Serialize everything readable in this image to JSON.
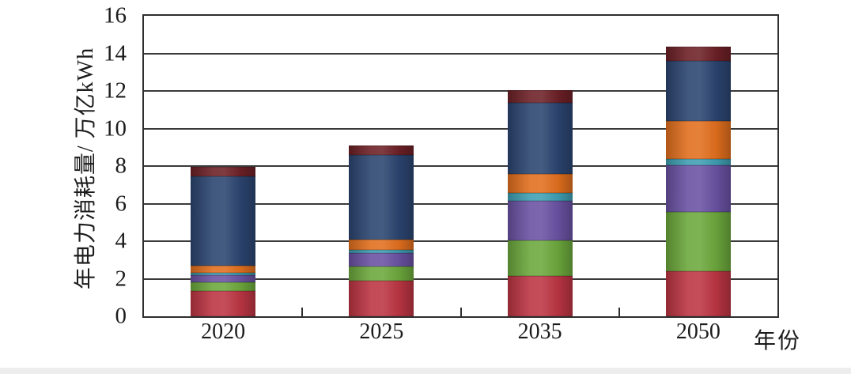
{
  "figure": {
    "background": "#ffffff",
    "footer_strip_color": "#ededed",
    "frame_color": "#2e2e2e",
    "gridline_color": "#3a3a3a"
  },
  "axes": {
    "y_title": "年电力消耗量/ 万亿kWh",
    "x_title": "年份",
    "y_tick_labels": [
      "0",
      "2",
      "4",
      "6",
      "8",
      "10",
      "12",
      "14",
      "16"
    ],
    "x_tick_labels": [
      "2020",
      "2025",
      "2035",
      "2050"
    ]
  },
  "chart_data": {
    "type": "bar",
    "stacked": true,
    "title": "",
    "xlabel": "年份",
    "ylabel": "年电力消耗量/ 万亿kWh",
    "categories": [
      "2020",
      "2025",
      "2035",
      "2050"
    ],
    "series": [
      {
        "name": "crimson-bottom-segment",
        "color": "#bc3543",
        "values": [
          1.35,
          1.9,
          2.15,
          2.4
        ]
      },
      {
        "name": "green-segment",
        "color": "#6ca83c",
        "values": [
          0.45,
          0.75,
          1.9,
          3.15
        ]
      },
      {
        "name": "purple-segment",
        "color": "#6a52a3",
        "values": [
          0.4,
          0.7,
          2.1,
          2.5
        ]
      },
      {
        "name": "teal-segment",
        "color": "#3f9fb3",
        "values": [
          0.1,
          0.2,
          0.4,
          0.35
        ]
      },
      {
        "name": "orange-segment",
        "color": "#e26f1e",
        "values": [
          0.4,
          0.55,
          1.05,
          2.0
        ]
      },
      {
        "name": "navy-segment",
        "color": "#2b4570",
        "values": [
          4.75,
          4.5,
          3.75,
          3.2
        ]
      },
      {
        "name": "maroon-top-segment",
        "color": "#6c2026",
        "values": [
          0.5,
          0.5,
          0.7,
          0.75
        ]
      }
    ],
    "totals": [
      7.95,
      9.1,
      12.05,
      14.35
    ],
    "ylim": [
      0,
      16
    ],
    "ytick_step": 2,
    "grid": true,
    "legend": false
  }
}
